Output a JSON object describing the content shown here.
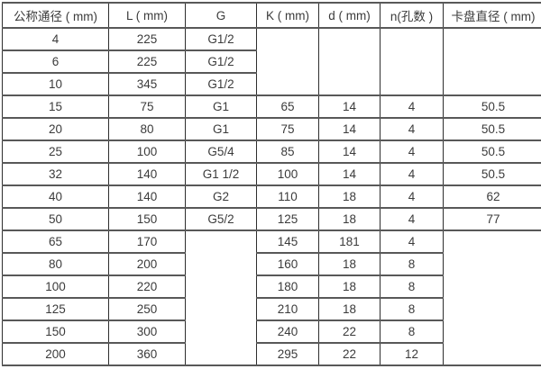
{
  "table": {
    "name": "flowmeter-dimension-spec-table",
    "header": [
      "公称通径 ( mm)",
      "L ( mm)",
      "G",
      "K ( mm)",
      "d ( mm)",
      "n(孔数 )",
      "卡盘直径 ( mm)"
    ],
    "rows": [
      [
        "4",
        "225",
        "G1/2",
        {
          "v": "",
          "rs": 3
        },
        {
          "v": "",
          "rs": 3
        },
        {
          "v": "",
          "rs": 3
        },
        {
          "v": "",
          "rs": 3
        }
      ],
      [
        "6",
        "225",
        "G1/2",
        null,
        null,
        null,
        null
      ],
      [
        "10",
        "345",
        "G1/2",
        null,
        null,
        null,
        null
      ],
      [
        "15",
        "75",
        "G1",
        "65",
        "14",
        "4",
        "50.5"
      ],
      [
        "20",
        "80",
        "G1",
        "75",
        "14",
        "4",
        "50.5"
      ],
      [
        "25",
        "100",
        "G5/4",
        "85",
        "14",
        "4",
        "50.5"
      ],
      [
        "32",
        "140",
        "G1  1/2",
        "100",
        "14",
        "4",
        "50.5"
      ],
      [
        "40",
        "140",
        "G2",
        "110",
        "18",
        "4",
        "62"
      ],
      [
        "50",
        "150",
        "G5/2",
        "125",
        "18",
        "4",
        "77"
      ],
      [
        "65",
        "170",
        {
          "v": "",
          "rs": 6
        },
        "145",
        "181",
        "4",
        {
          "v": "",
          "rs": 6
        }
      ],
      [
        "80",
        "200",
        null,
        "160",
        "18",
        "8",
        null
      ],
      [
        "100",
        "220",
        null,
        "180",
        "18",
        "8",
        null
      ],
      [
        "125",
        "250",
        null,
        "210",
        "18",
        "8",
        null
      ],
      [
        "150",
        "300",
        null,
        "240",
        "22",
        "8",
        null
      ],
      [
        "200",
        "360",
        null,
        "295",
        "22",
        "12",
        null
      ]
    ]
  },
  "colors": {
    "border_horizontal": "#585858",
    "border_vertical": "#2e2e2e",
    "text": "#3b3b3b",
    "background": "#ffffff"
  }
}
